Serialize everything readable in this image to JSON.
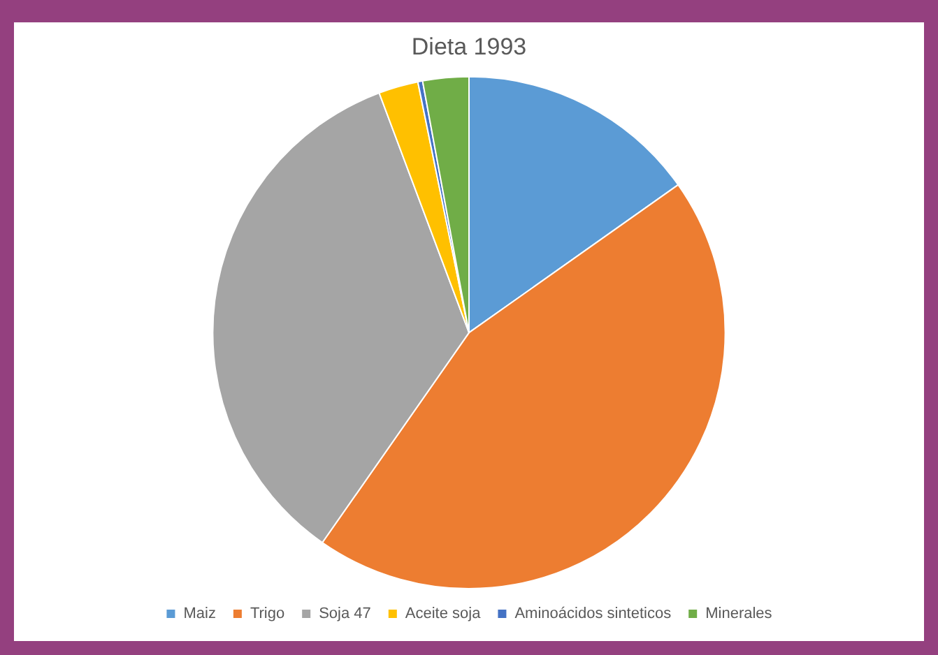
{
  "chart_data": {
    "type": "pie",
    "title": "Dieta 1993",
    "categories": [
      "Maiz",
      "Trigo",
      "Soja 47",
      "Aceite soja",
      "Aminoácidos sinteticos",
      "Minerales"
    ],
    "values": [
      15.2,
      44.5,
      34.6,
      2.5,
      0.3,
      2.9
    ],
    "colors": [
      "#5b9bd5",
      "#ed7d31",
      "#a5a5a5",
      "#ffc000",
      "#4472c4",
      "#70ad47"
    ],
    "legend": "bottom"
  }
}
